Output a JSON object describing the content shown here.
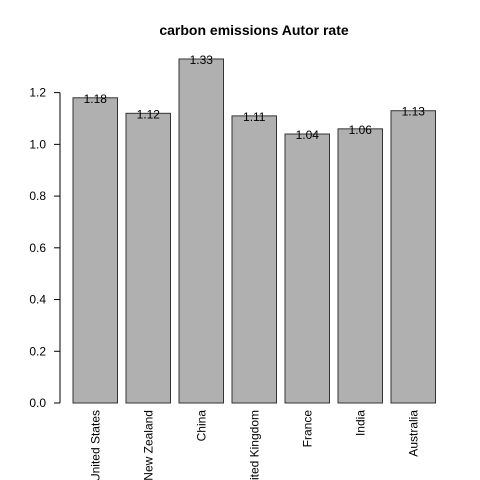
{
  "chart_data": {
    "type": "bar",
    "title": "carbon emissions Autor rate",
    "xlabel": "",
    "ylabel": "",
    "categories": [
      "United States",
      "New Zealand",
      "China",
      "United Kingdom",
      "France",
      "India",
      "Australia"
    ],
    "values": [
      1.18,
      1.12,
      1.33,
      1.11,
      1.04,
      1.06,
      1.13
    ],
    "data_labels": [
      "1.18",
      "1.12",
      "1.33",
      "1.11",
      "1.04",
      "1.06",
      "1.13"
    ],
    "yticks": [
      "0.0",
      "0.2",
      "0.4",
      "0.6",
      "0.8",
      "1.0",
      "1.2"
    ],
    "ylim": [
      0,
      1.33
    ],
    "grid": false,
    "colors": {
      "bar_fill": "#b0b0b0",
      "bar_border": "#333333"
    }
  }
}
